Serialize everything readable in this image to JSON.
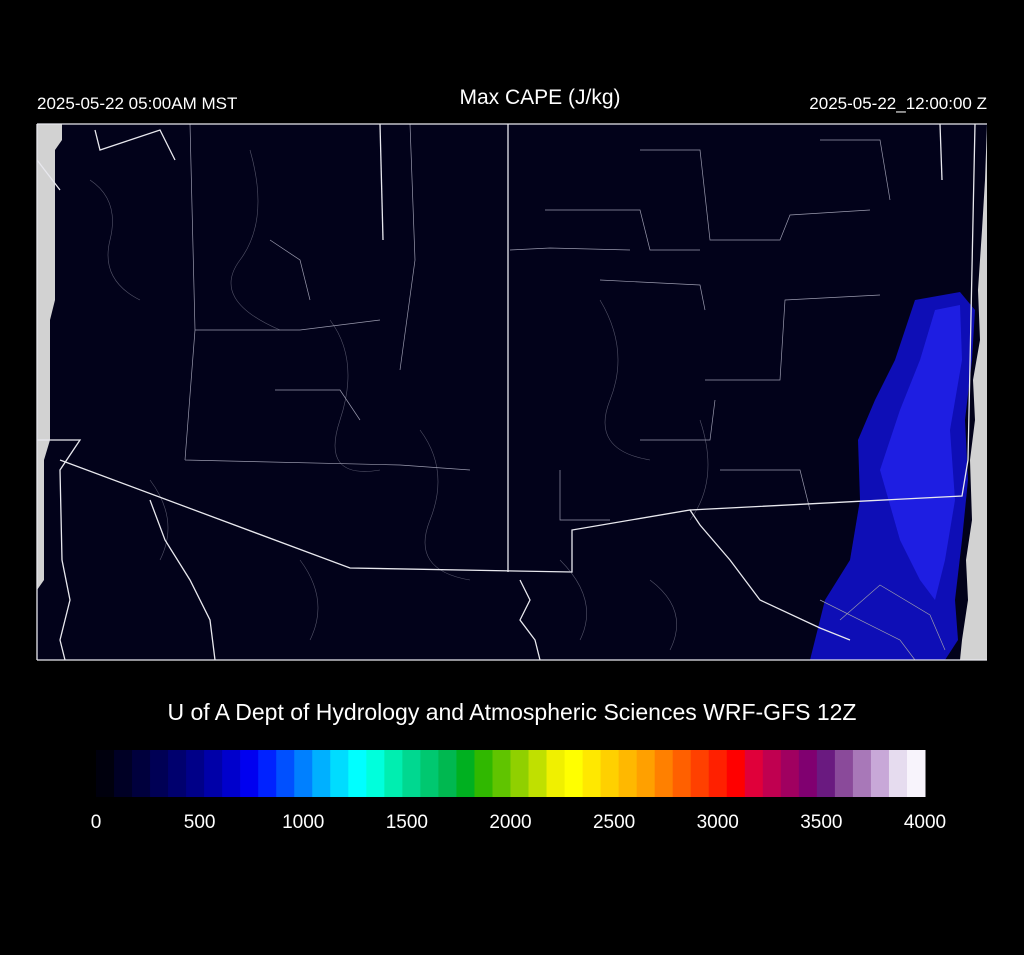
{
  "header": {
    "title": "Max CAPE (J/kg)",
    "local_time": "2025-05-22 05:00AM MST",
    "valid_time": "2025-05-22_12:00:00 Z"
  },
  "credit": "U of A Dept of Hydrology and Atmospheric Sciences WRF-GFS 12Z",
  "colorbar": {
    "range": [
      0,
      4000
    ],
    "ticks": [
      0,
      500,
      1000,
      1500,
      2000,
      2500,
      3000,
      3500,
      4000
    ],
    "colors": [
      "#00000d",
      "#000025",
      "#00003d",
      "#000055",
      "#00006e",
      "#000088",
      "#0000a8",
      "#0000cc",
      "#0000f0",
      "#0022ff",
      "#0050ff",
      "#0080ff",
      "#00b0ff",
      "#00dcff",
      "#00ffff",
      "#00ffdc",
      "#00eeb0",
      "#00d890",
      "#00c870",
      "#00b850",
      "#00b020",
      "#30b800",
      "#60c400",
      "#90d000",
      "#c0e000",
      "#f0f000",
      "#ffff00",
      "#ffe800",
      "#ffd000",
      "#ffb800",
      "#ffa000",
      "#ff8000",
      "#ff6000",
      "#ff4000",
      "#ff2000",
      "#ff0000",
      "#e0003a",
      "#c00050",
      "#a00060",
      "#800070",
      "#6a1a80",
      "#8a4a9a",
      "#a878b8",
      "#c8a8d8",
      "#e6dcef",
      "#f8f4fc"
    ]
  }
}
